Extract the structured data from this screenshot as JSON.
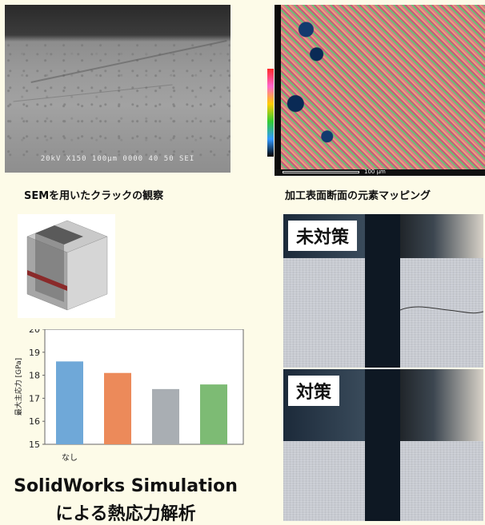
{
  "sem": {
    "info": "20kV   X150 100μm 0000 40 50 SEI",
    "caption": "SEMを用いたクラックの観察"
  },
  "mapping": {
    "scale": "100 μm",
    "caption": "加工表面断面の元素マッピング"
  },
  "chart_data": {
    "type": "bar",
    "categories": [
      "なし",
      "",
      "",
      ""
    ],
    "values": [
      18.6,
      18.1,
      17.4,
      17.6
    ],
    "colors": [
      "#6fa8d8",
      "#ec8a5a",
      "#a9aeb3",
      "#7dbb74"
    ],
    "ylabel": "最大主応力 [GPa]",
    "ylim": [
      15,
      20
    ],
    "yticks": [
      15,
      16,
      17,
      18,
      19,
      20
    ],
    "grid": false
  },
  "solidworks": {
    "line1": "SolidWorks Simulation",
    "line2": "による熱応力解析"
  },
  "micro": {
    "before_label": "未対策",
    "after_label": "対策"
  }
}
